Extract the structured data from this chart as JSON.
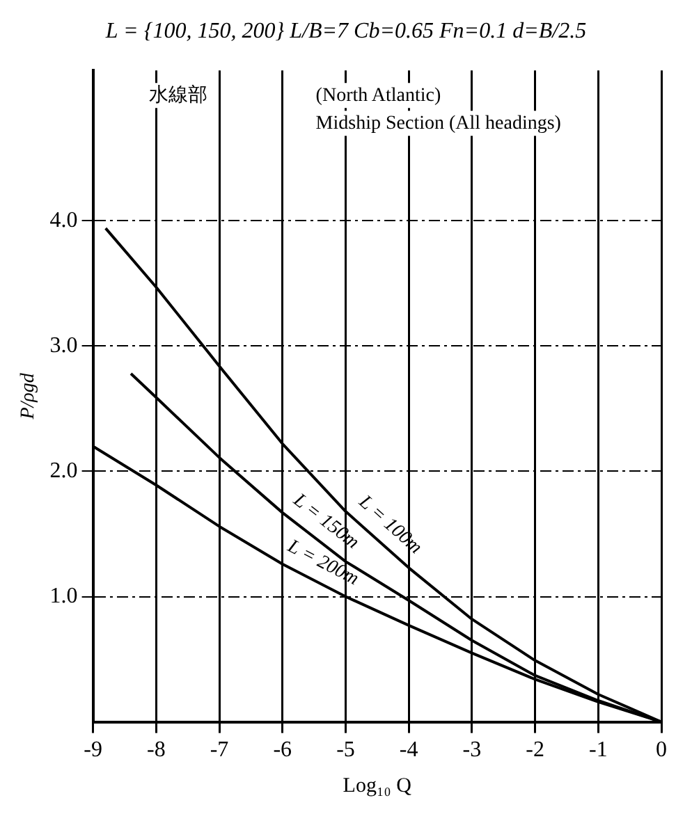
{
  "chart_data": {
    "type": "line",
    "title": "L = {100, 150, 200}  L/B=7  Cb=0.65  Fn=0.1  d=B/2.5",
    "xlabel": "Log₁₀ Q",
    "ylabel": "P/ρgd",
    "annotations": [
      "水線部",
      "(North Atlantic)",
      "Midship Section (All headings)"
    ],
    "series": [
      {
        "name": "L = 100m",
        "color": "#000000",
        "x": [
          -8.8,
          -8,
          -7,
          -6,
          -5,
          -4,
          -3,
          -2,
          -1,
          0
        ],
        "values": [
          3.94,
          3.47,
          2.84,
          2.22,
          1.68,
          1.23,
          0.82,
          0.49,
          0.22,
          0
        ]
      },
      {
        "name": "L = 150m",
        "color": "#000000",
        "x": [
          -8.4,
          -8,
          -7,
          -6,
          -5,
          -4,
          -3,
          -2,
          -1,
          0
        ],
        "values": [
          2.78,
          2.59,
          2.11,
          1.67,
          1.28,
          0.97,
          0.65,
          0.37,
          0.17,
          0
        ]
      },
      {
        "name": "L = 200m",
        "color": "#000000",
        "x": [
          -9,
          -8,
          -7,
          -6,
          -5,
          -4,
          -3,
          -2,
          -1,
          0
        ],
        "values": [
          2.2,
          1.89,
          1.56,
          1.26,
          1.0,
          0.77,
          0.55,
          0.34,
          0.16,
          0
        ]
      }
    ],
    "xlim": [
      -9,
      0
    ],
    "xticks": [
      -9,
      -8,
      -7,
      -6,
      -5,
      -4,
      -3,
      -2,
      -1,
      0
    ],
    "ylim": [
      0,
      5.2
    ],
    "yticks": [
      {
        "value": 1,
        "label": "1.0"
      },
      {
        "value": 2,
        "label": "2.0"
      },
      {
        "value": 3,
        "label": "3.0"
      },
      {
        "value": 4,
        "label": "4.0"
      }
    ],
    "grid": true,
    "legend": false,
    "marker": "none",
    "line_style": "solid"
  }
}
